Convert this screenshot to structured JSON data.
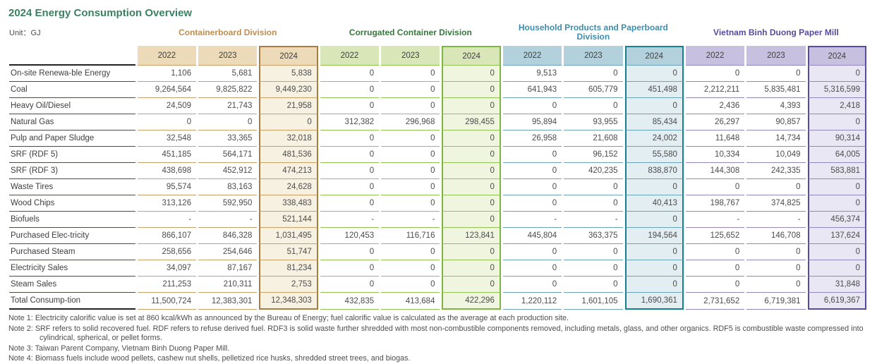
{
  "title": "2024 Energy Consumption Overview",
  "unit_label": "Unit：GJ",
  "title_color": "#3a8262",
  "divisions": [
    {
      "name": "Containerboard Division",
      "years": [
        "2022",
        "2023",
        "2024"
      ],
      "title_color": "#bf8e53",
      "head_bg": "#ecdab8",
      "line": "#c9a066",
      "hl_border": "#ab7c42",
      "hl_bg": "#f7f1e2"
    },
    {
      "name": "Corrugated Container Division",
      "years": [
        "2022",
        "2023",
        "2024"
      ],
      "title_color": "#37793c",
      "head_bg": "#d9e7b8",
      "line": "#93c254",
      "hl_border": "#7eb441",
      "hl_bg": "#eff5df"
    },
    {
      "name": "Household Products and Paperboard Division",
      "years": [
        "2022",
        "2023",
        "2024"
      ],
      "title_color": "#3b8fae",
      "head_bg": "#b2d1dd",
      "line": "#6ba4b6",
      "hl_border": "#15808d",
      "hl_bg": "#e3eef2"
    },
    {
      "name": "Vietnam Binh Duong Paper Mill",
      "years": [
        "2022",
        "2023",
        "2024"
      ],
      "title_color": "#5a4a9c",
      "head_bg": "#c7c0df",
      "line": "#9288bf",
      "hl_border": "#5a4a9c",
      "hl_bg": "#eae7f4"
    }
  ],
  "rows": [
    {
      "label": "On-site Renewa-ble Energy",
      "values": [
        [
          "1,106",
          "5,681",
          "5,838"
        ],
        [
          "0",
          "0",
          "0"
        ],
        [
          "9,513",
          "0",
          "0"
        ],
        [
          "0",
          "0",
          "0"
        ]
      ]
    },
    {
      "label": "Coal",
      "values": [
        [
          "9,264,564",
          "9,825,822",
          "9,449,230"
        ],
        [
          "0",
          "0",
          "0"
        ],
        [
          "641,943",
          "605,779",
          "451,498"
        ],
        [
          "2,212,211",
          "5,835,481",
          "5,316,599"
        ]
      ]
    },
    {
      "label": "Heavy Oil/Diesel",
      "values": [
        [
          "24,509",
          "21,743",
          "21,958"
        ],
        [
          "0",
          "0",
          "0"
        ],
        [
          "0",
          "0",
          "0"
        ],
        [
          "2,436",
          "4,393",
          "2,418"
        ]
      ]
    },
    {
      "label": "Natural Gas",
      "values": [
        [
          "0",
          "0",
          "0"
        ],
        [
          "312,382",
          "296,968",
          "298,455"
        ],
        [
          "95,894",
          "93,955",
          "85,434"
        ],
        [
          "26,297",
          "90,857",
          "0"
        ]
      ]
    },
    {
      "label": "Pulp and Paper Sludge",
      "values": [
        [
          "32,548",
          "33,365",
          "32,018"
        ],
        [
          "0",
          "0",
          "0"
        ],
        [
          "26,958",
          "21,608",
          "24,002"
        ],
        [
          "11,648",
          "14,734",
          "90,314"
        ]
      ]
    },
    {
      "label": "SRF (RDF 5)",
      "values": [
        [
          "451,185",
          "564,171",
          "481,536"
        ],
        [
          "0",
          "0",
          "0"
        ],
        [
          "0",
          "96,152",
          "55,580"
        ],
        [
          "10,334",
          "10,049",
          "64,005"
        ]
      ]
    },
    {
      "label": "SRF (RDF 3)",
      "values": [
        [
          "438,698",
          "452,912",
          "474,213"
        ],
        [
          "0",
          "0",
          "0"
        ],
        [
          "0",
          "420,235",
          "838,870"
        ],
        [
          "144,308",
          "242,335",
          "583,881"
        ]
      ]
    },
    {
      "label": "Waste Tires",
      "values": [
        [
          "95,574",
          "83,163",
          "24,628"
        ],
        [
          "0",
          "0",
          "0"
        ],
        [
          "0",
          "0",
          "0"
        ],
        [
          "0",
          "0",
          "0"
        ]
      ]
    },
    {
      "label": "Wood Chips",
      "values": [
        [
          "313,126",
          "592,950",
          "338,483"
        ],
        [
          "0",
          "0",
          "0"
        ],
        [
          "0",
          "0",
          "40,413"
        ],
        [
          "198,767",
          "374,825",
          "0"
        ]
      ]
    },
    {
      "label": "Biofuels",
      "values": [
        [
          "-",
          "-",
          "521,144"
        ],
        [
          "-",
          "-",
          "0"
        ],
        [
          "-",
          "-",
          "0"
        ],
        [
          "-",
          "-",
          "456,374"
        ]
      ]
    },
    {
      "label": "Purchased Elec-tricity",
      "values": [
        [
          "866,107",
          "846,328",
          "1,031,495"
        ],
        [
          "120,453",
          "116,716",
          "123,841"
        ],
        [
          "445,804",
          "363,375",
          "194,564"
        ],
        [
          "125,652",
          "146,708",
          "137,624"
        ]
      ]
    },
    {
      "label": "Purchased Steam",
      "values": [
        [
          "258,656",
          "254,646",
          "51,747"
        ],
        [
          "0",
          "0",
          "0"
        ],
        [
          "0",
          "0",
          "0"
        ],
        [
          "0",
          "0",
          "0"
        ]
      ]
    },
    {
      "label": "Electricity Sales",
      "values": [
        [
          "34,097",
          "87,167",
          "81,234"
        ],
        [
          "0",
          "0",
          "0"
        ],
        [
          "0",
          "0",
          "0"
        ],
        [
          "0",
          "0",
          "0"
        ]
      ]
    },
    {
      "label": "Steam Sales",
      "values": [
        [
          "211,253",
          "210,311",
          "2,753"
        ],
        [
          "0",
          "0",
          "0"
        ],
        [
          "0",
          "0",
          "0"
        ],
        [
          "0",
          "0",
          "31,848"
        ]
      ]
    },
    {
      "label": "Total Consump-tion",
      "values": [
        [
          "11,500,724",
          "12,383,301",
          "12,348,303"
        ],
        [
          "432,835",
          "413,684",
          "422,296"
        ],
        [
          "1,220,112",
          "1,601,105",
          "1,690,361"
        ],
        [
          "2,731,652",
          "6,719,381",
          "6,619,367"
        ]
      ]
    }
  ],
  "notes": [
    {
      "label": "Note 1:",
      "text": "Electricity calorific value is set at 860 kcal/kWh as announced by the Bureau of Energy; fuel calorific value is calculated as the average at each production site."
    },
    {
      "label": "Note 2:",
      "text": "SRF refers to solid recovered fuel. RDF refers to refuse derived fuel. RDF3 is solid waste further shredded with most non-combustible components removed, including metals, glass, and other organics. RDF5 is combustible waste compressed into cylindrical, spherical, or pellet forms."
    },
    {
      "label": "Note 3:",
      "text": "Taiwan Parent Company, Vietnam Binh Duong Paper Mill."
    },
    {
      "label": "Note 4:",
      "text": "Biomass fuels include wood pellets, cashew nut shells, pelletized rice husks, shredded street trees, and biogas."
    }
  ]
}
